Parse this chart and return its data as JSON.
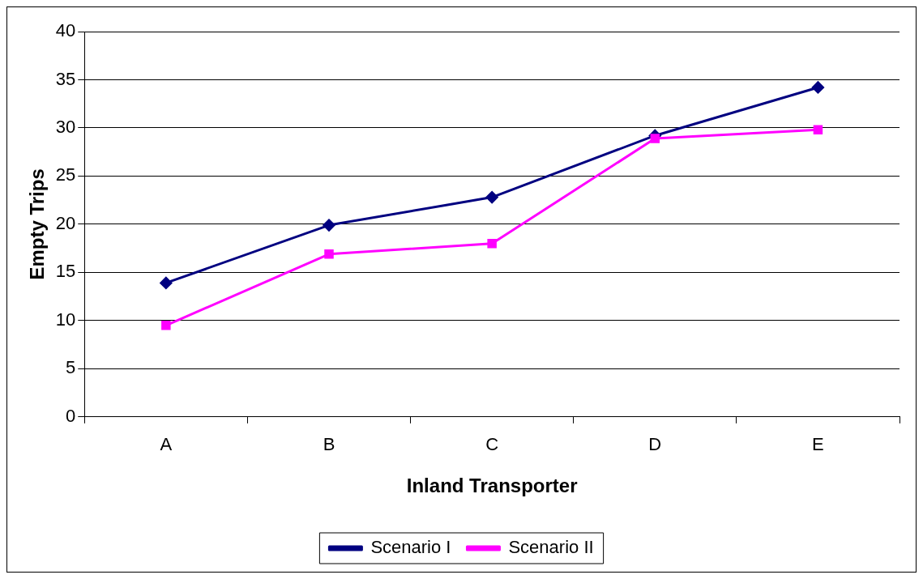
{
  "chart_data": {
    "type": "line",
    "xlabel": "Inland Transporter",
    "ylabel": "Empty Trips",
    "categories": [
      "A",
      "B",
      "C",
      "D",
      "E"
    ],
    "series": [
      {
        "name": "Scenario I",
        "color": "#000080",
        "marker": "diamond",
        "values": [
          13.9,
          19.9,
          22.8,
          29.2,
          34.2
        ]
      },
      {
        "name": "Scenario II",
        "color": "#ff00ff",
        "marker": "square",
        "values": [
          9.5,
          16.9,
          18.0,
          28.9,
          29.8
        ]
      }
    ],
    "ylim": [
      0,
      40
    ],
    "yticks": [
      0,
      5,
      10,
      15,
      20,
      25,
      30,
      35,
      40
    ],
    "grid": "y",
    "legend": "bottom"
  }
}
